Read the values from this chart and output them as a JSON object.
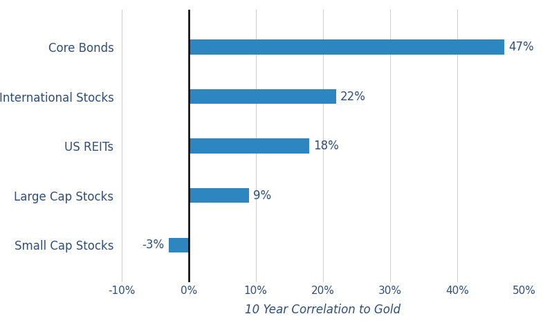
{
  "categories": [
    "Small Cap Stocks",
    "Large Cap Stocks",
    "US REITs",
    "International Stocks",
    "Core Bonds"
  ],
  "values": [
    -3,
    9,
    18,
    22,
    47
  ],
  "labels": [
    "-3%",
    "9%",
    "18%",
    "22%",
    "47%"
  ],
  "bar_color": "#2e86c1",
  "xlim": [
    -10,
    50
  ],
  "xticks": [
    -10,
    0,
    10,
    20,
    30,
    40,
    50
  ],
  "xtick_labels": [
    "-10%",
    "0%",
    "10%",
    "20%",
    "30%",
    "40%",
    "50%"
  ],
  "xlabel": "10 Year Correlation to Gold",
  "background_color": "#ffffff",
  "bar_height": 0.3,
  "label_fontsize": 12,
  "tick_fontsize": 11,
  "xlabel_fontsize": 12,
  "category_fontsize": 12,
  "zero_line_color": "#000000",
  "grid_color": "#d0d0d0",
  "text_color": "#2e4f7a"
}
